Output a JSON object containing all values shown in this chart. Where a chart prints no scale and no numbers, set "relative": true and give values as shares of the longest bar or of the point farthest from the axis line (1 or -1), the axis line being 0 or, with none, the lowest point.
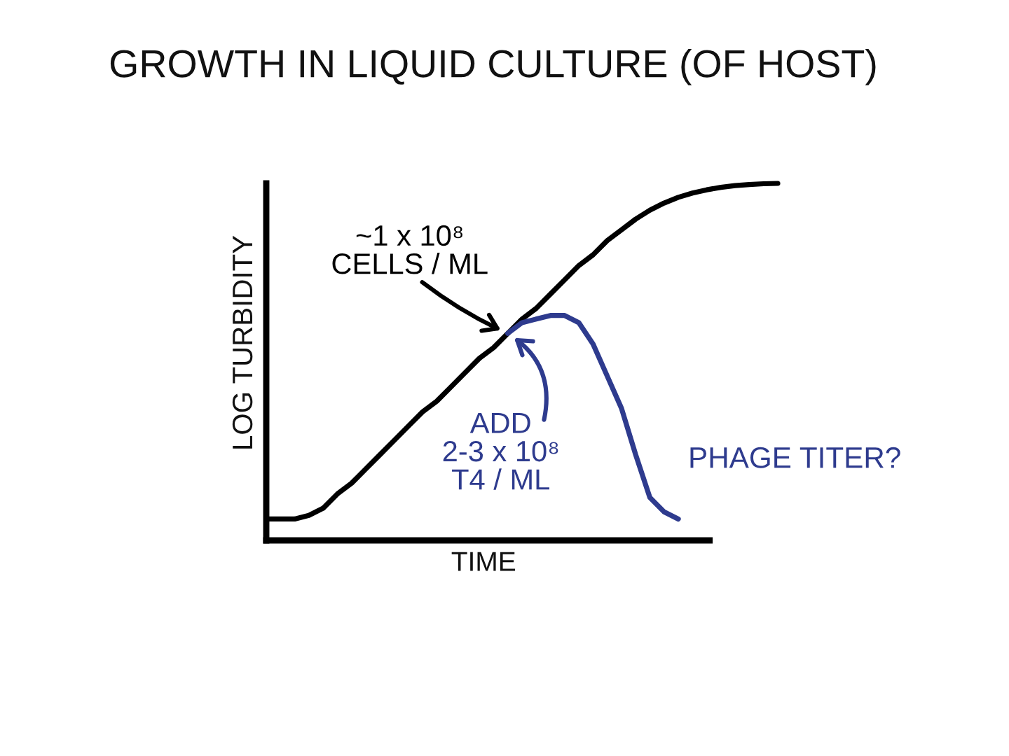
{
  "chart_data": {
    "type": "line",
    "title": "GROWTH IN LIQUID CULTURE (OF HOST)",
    "xlabel": "TIME",
    "ylabel": "LOG TURBIDITY",
    "relative": true,
    "categories": [
      null,
      null,
      null,
      null,
      null,
      null,
      null,
      null,
      null,
      null,
      null,
      null,
      null,
      null,
      null,
      null,
      null,
      null,
      null,
      null,
      null,
      null,
      null,
      null,
      null,
      null,
      null,
      null,
      null,
      null,
      null,
      null,
      null,
      null,
      null,
      null,
      null
    ],
    "series": [
      {
        "color": "#000000",
        "values": [
          0.06,
          0.06,
          0.06,
          0.07,
          0.09,
          0.13,
          0.16,
          0.2,
          0.24,
          0.28,
          0.32,
          0.36,
          0.39,
          0.43,
          0.47,
          0.51,
          0.54,
          0.58,
          0.62,
          0.65,
          0.69,
          0.73,
          0.77,
          0.8,
          0.84,
          0.87,
          0.9,
          0.925,
          0.945,
          0.961,
          0.973,
          0.982,
          0.989,
          0.994,
          0.997,
          0.999,
          1.0
        ]
      },
      {
        "name": "PHAGE TITER?",
        "color": "#2e3b8e",
        "values": [
          null,
          null,
          null,
          null,
          null,
          null,
          null,
          null,
          null,
          null,
          null,
          null,
          null,
          null,
          null,
          null,
          null,
          0.58,
          0.61,
          0.62,
          0.63,
          0.63,
          0.61,
          0.55,
          0.46,
          0.37,
          0.24,
          0.12,
          0.08,
          0.06,
          null,
          null,
          null,
          null,
          null,
          null,
          null
        ]
      }
    ],
    "annotations": [
      "~1 x 10⁸\nCELLS / ML",
      "ADD\n2-3 x 10⁸\nT4 / ML"
    ]
  }
}
